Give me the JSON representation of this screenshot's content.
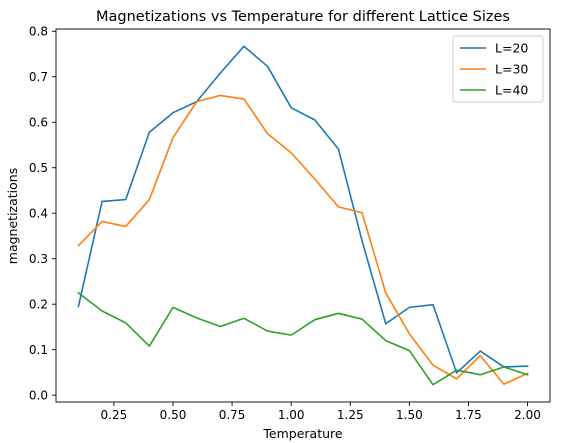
{
  "chart_data": {
    "type": "line",
    "title": "Magnetizations vs Temperature for different Lattice Sizes",
    "xlabel": "Temperature",
    "ylabel": "magnetizations",
    "xlim": [
      0.005,
      2.095
    ],
    "ylim": [
      -0.015,
      0.805
    ],
    "xticks": [
      0.25,
      0.5,
      0.75,
      1.0,
      1.25,
      1.5,
      1.75,
      2.0
    ],
    "xtick_labels": [
      "0.25",
      "0.50",
      "0.75",
      "1.00",
      "1.25",
      "1.50",
      "1.75",
      "2.00"
    ],
    "yticks": [
      0.0,
      0.1,
      0.2,
      0.3,
      0.4,
      0.5,
      0.6,
      0.7,
      0.8
    ],
    "ytick_labels": [
      "0.0",
      "0.1",
      "0.2",
      "0.3",
      "0.4",
      "0.5",
      "0.6",
      "0.7",
      "0.8"
    ],
    "grid": false,
    "legend_position": "upper right",
    "x": [
      0.1,
      0.2,
      0.3,
      0.4,
      0.5,
      0.6,
      0.7,
      0.8,
      0.9,
      1.0,
      1.1,
      1.2,
      1.3,
      1.4,
      1.5,
      1.6,
      1.7,
      1.8,
      1.9,
      2.0
    ],
    "series": [
      {
        "name": "L=20",
        "color": "#1f77b4",
        "values": [
          0.195,
          0.426,
          0.43,
          0.578,
          0.621,
          0.645,
          0.708,
          0.767,
          0.723,
          0.632,
          0.605,
          0.541,
          0.339,
          0.157,
          0.193,
          0.199,
          0.049,
          0.097,
          0.062,
          0.064
        ]
      },
      {
        "name": "L=30",
        "color": "#ff7f0e",
        "values": [
          0.329,
          0.382,
          0.371,
          0.43,
          0.566,
          0.645,
          0.659,
          0.651,
          0.575,
          0.533,
          0.475,
          0.414,
          0.401,
          0.225,
          0.135,
          0.066,
          0.036,
          0.087,
          0.024,
          0.048
        ]
      },
      {
        "name": "L=40",
        "color": "#2ca02c",
        "values": [
          0.225,
          0.185,
          0.159,
          0.108,
          0.193,
          0.17,
          0.151,
          0.169,
          0.141,
          0.132,
          0.166,
          0.18,
          0.167,
          0.12,
          0.098,
          0.023,
          0.055,
          0.045,
          0.062,
          0.045
        ]
      }
    ]
  }
}
